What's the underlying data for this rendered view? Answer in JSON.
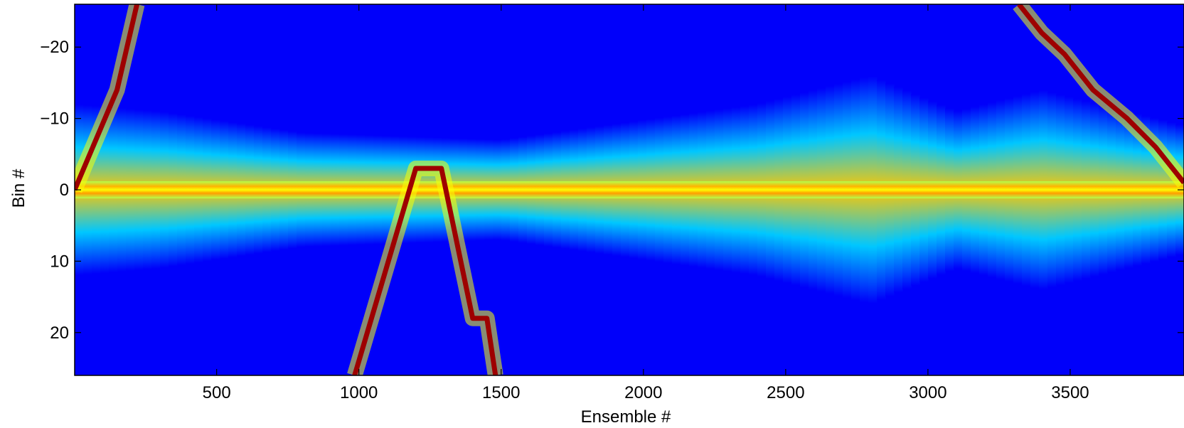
{
  "chart_data": {
    "type": "heatmap",
    "title": "",
    "xlabel": "Ensemble #",
    "ylabel": "Bin #",
    "xlim": [
      1,
      3900
    ],
    "ylim": [
      -26,
      26
    ],
    "y_reversed": true,
    "colormap": "jet",
    "x_ticks": [
      500,
      1000,
      1500,
      2000,
      2500,
      3000,
      3500
    ],
    "x_tick_labels": [
      "500",
      "1000",
      "1500",
      "2000",
      "2500",
      "3000",
      "3500"
    ],
    "y_ticks": [
      -20,
      -10,
      0,
      10,
      20
    ],
    "y_tick_labels": [
      "−20",
      "−10",
      "0",
      "10",
      "20"
    ],
    "background_level": 0.12,
    "center_bin": 0,
    "center_band_halfwidth_bins": 1.2,
    "spread_profile": [
      {
        "x": 1,
        "halfwidth": 12
      },
      {
        "x": 300,
        "halfwidth": 11
      },
      {
        "x": 800,
        "halfwidth": 8
      },
      {
        "x": 1500,
        "halfwidth": 7
      },
      {
        "x": 2400,
        "halfwidth": 12
      },
      {
        "x": 2800,
        "halfwidth": 16
      },
      {
        "x": 3100,
        "halfwidth": 11
      },
      {
        "x": 3400,
        "halfwidth": 14
      },
      {
        "x": 3900,
        "halfwidth": 9
      }
    ],
    "tracks": [
      {
        "points": [
          [
            1,
            0
          ],
          [
            150,
            -14
          ],
          [
            220,
            -26
          ]
        ]
      },
      {
        "points": [
          [
            985,
            26
          ],
          [
            1200,
            -3
          ],
          [
            1290,
            -3
          ],
          [
            1400,
            18
          ],
          [
            1450,
            18
          ],
          [
            1480,
            26
          ]
        ]
      },
      {
        "points": [
          [
            3320,
            -26
          ],
          [
            3400,
            -22
          ],
          [
            3480,
            -19
          ],
          [
            3580,
            -14
          ],
          [
            3700,
            -10
          ],
          [
            3800,
            -6
          ],
          [
            3900,
            -1
          ]
        ]
      }
    ],
    "grid": false,
    "legend": "none"
  }
}
